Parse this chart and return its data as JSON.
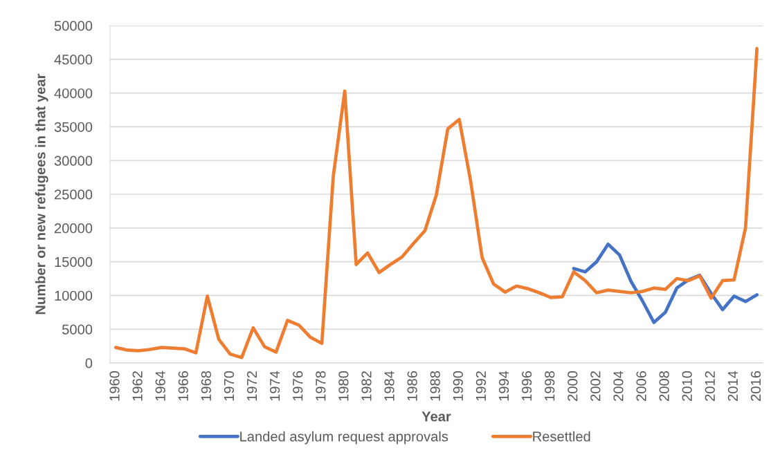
{
  "chart_data": {
    "type": "line",
    "xlabel": "Year",
    "ylabel": "Number or new refugees in that year",
    "categories": [
      "1960",
      null,
      "1962",
      null,
      "1964",
      null,
      "1966",
      null,
      "1968",
      null,
      "1970",
      null,
      "1972",
      null,
      "1974",
      null,
      "1976",
      null,
      "1978",
      null,
      "1980",
      null,
      "1982",
      null,
      "1984",
      null,
      "1986",
      null,
      "1988",
      null,
      "1990",
      null,
      "1992",
      null,
      "1994",
      null,
      "1996",
      null,
      "1998",
      null,
      "2000",
      null,
      "2002",
      null,
      "2004",
      null,
      "2006",
      null,
      "2008",
      null,
      "2010",
      null,
      "2012",
      null,
      "2014",
      null,
      "2016"
    ],
    "ylim": [
      0,
      50000
    ],
    "yticks": [
      0,
      5000,
      10000,
      15000,
      20000,
      25000,
      30000,
      35000,
      40000,
      45000,
      50000
    ],
    "grid": "y",
    "legend": "bottom",
    "line_style": "solid",
    "series": [
      {
        "name": "Landed asylum request approvals",
        "color": "#4472c4",
        "values": [
          null,
          null,
          null,
          null,
          null,
          null,
          null,
          null,
          null,
          null,
          null,
          null,
          null,
          null,
          null,
          null,
          null,
          null,
          null,
          null,
          null,
          null,
          null,
          null,
          null,
          null,
          null,
          null,
          null,
          null,
          null,
          null,
          null,
          null,
          null,
          null,
          null,
          null,
          null,
          null,
          14000,
          13500,
          15000,
          17600,
          16000,
          12100,
          9200,
          6000,
          7500,
          11100,
          12300,
          13000,
          10300,
          7900,
          9900,
          9100,
          10100
        ]
      },
      {
        "name": "Resettled",
        "color": "#ed7d31",
        "values": [
          2300,
          1900,
          1800,
          2000,
          2300,
          2200,
          2100,
          1500,
          9900,
          3500,
          1300,
          800,
          5200,
          2400,
          1600,
          6300,
          5600,
          3800,
          2900,
          27700,
          40300,
          14600,
          16300,
          13400,
          14600,
          15700,
          17700,
          19600,
          24900,
          34700,
          36100,
          26900,
          15600,
          11700,
          10500,
          11400,
          11000,
          10400,
          9700,
          9800,
          13500,
          12200,
          10400,
          10800,
          10600,
          10400,
          10600,
          11100,
          10900,
          12500,
          12200,
          12900,
          9600,
          12200,
          12300,
          20000,
          46600
        ]
      }
    ]
  }
}
